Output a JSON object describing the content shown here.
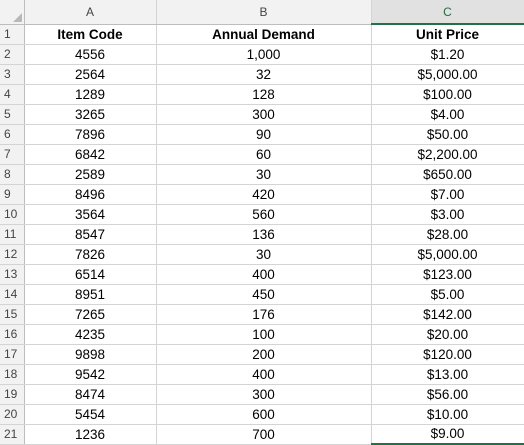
{
  "columns": [
    "A",
    "B",
    "C"
  ],
  "rows": [
    {
      "num": "1",
      "a": "Item Code",
      "b": "Annual Demand",
      "c": "Unit Price"
    },
    {
      "num": "2",
      "a": "4556",
      "b": "1,000",
      "c": "$1.20"
    },
    {
      "num": "3",
      "a": "2564",
      "b": "32",
      "c": "$5,000.00"
    },
    {
      "num": "4",
      "a": "1289",
      "b": "128",
      "c": "$100.00"
    },
    {
      "num": "5",
      "a": "3265",
      "b": "300",
      "c": "$4.00"
    },
    {
      "num": "6",
      "a": "7896",
      "b": "90",
      "c": "$50.00"
    },
    {
      "num": "7",
      "a": "6842",
      "b": "60",
      "c": "$2,200.00"
    },
    {
      "num": "8",
      "a": "2589",
      "b": "30",
      "c": "$650.00"
    },
    {
      "num": "9",
      "a": "8496",
      "b": "420",
      "c": "$7.00"
    },
    {
      "num": "10",
      "a": "3564",
      "b": "560",
      "c": "$3.00"
    },
    {
      "num": "11",
      "a": "8547",
      "b": "136",
      "c": "$28.00"
    },
    {
      "num": "12",
      "a": "7826",
      "b": "30",
      "c": "$5,000.00"
    },
    {
      "num": "13",
      "a": "6514",
      "b": "400",
      "c": "$123.00"
    },
    {
      "num": "14",
      "a": "8951",
      "b": "450",
      "c": "$5.00"
    },
    {
      "num": "15",
      "a": "7265",
      "b": "176",
      "c": "$142.00"
    },
    {
      "num": "16",
      "a": "4235",
      "b": "100",
      "c": "$20.00"
    },
    {
      "num": "17",
      "a": "9898",
      "b": "200",
      "c": "$120.00"
    },
    {
      "num": "18",
      "a": "9542",
      "b": "400",
      "c": "$13.00"
    },
    {
      "num": "19",
      "a": "8474",
      "b": "300",
      "c": "$56.00"
    },
    {
      "num": "20",
      "a": "5454",
      "b": "600",
      "c": "$10.00"
    },
    {
      "num": "21",
      "a": "1236",
      "b": "700",
      "c": "$9.00"
    }
  ],
  "colors": {
    "selection_accent": "#217346",
    "header_bg": "#f2f2f2",
    "gridline": "#d4d4d4"
  }
}
